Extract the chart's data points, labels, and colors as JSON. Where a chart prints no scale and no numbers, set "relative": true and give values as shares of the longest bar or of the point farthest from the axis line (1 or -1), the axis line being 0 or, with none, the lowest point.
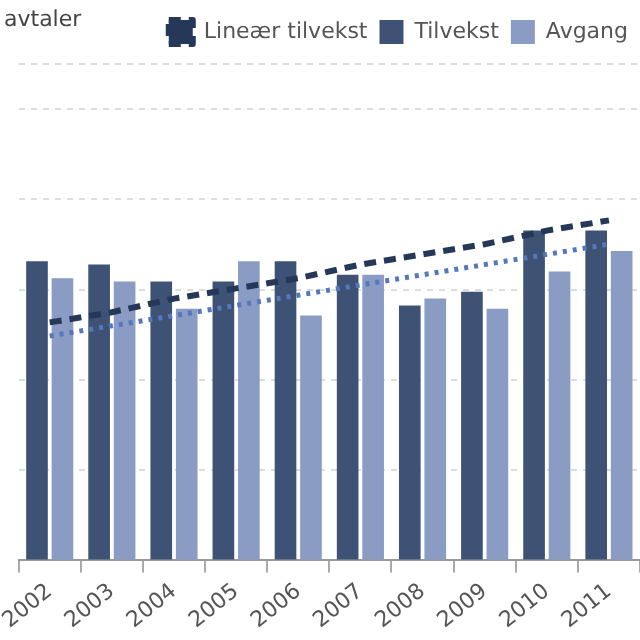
{
  "chart_data": {
    "type": "bar",
    "title": "avtaler",
    "relative": true,
    "legend": "top right",
    "grid": "y",
    "categories": [
      "2002",
      "2003",
      "2004",
      "2005",
      "2006",
      "2007",
      "2008",
      "2009",
      "2010",
      "2011"
    ],
    "series": [
      {
        "name": "Tilvekst",
        "color": "#3d5275",
        "values": [
          0.88,
          0.87,
          0.82,
          0.82,
          0.88,
          0.84,
          0.75,
          0.79,
          0.97,
          0.97
        ]
      },
      {
        "name": "Avgang",
        "color": "#8a9bc4",
        "values": [
          0.83,
          0.82,
          0.74,
          0.88,
          0.72,
          0.84,
          0.77,
          0.74,
          0.85,
          0.91
        ]
      },
      {
        "name": "Lineær tilvekst",
        "type": "line",
        "line_style": "dashed",
        "color": "#253858",
        "values": [
          0.7,
          0.73,
          0.77,
          0.8,
          0.83,
          0.87,
          0.9,
          0.93,
          0.97,
          1.0
        ]
      },
      {
        "type": "line",
        "line_style": "dotted",
        "color": "#5577bb",
        "values": [
          0.66,
          0.69,
          0.72,
          0.75,
          0.78,
          0.81,
          0.84,
          0.87,
          0.9,
          0.93
        ]
      }
    ]
  }
}
